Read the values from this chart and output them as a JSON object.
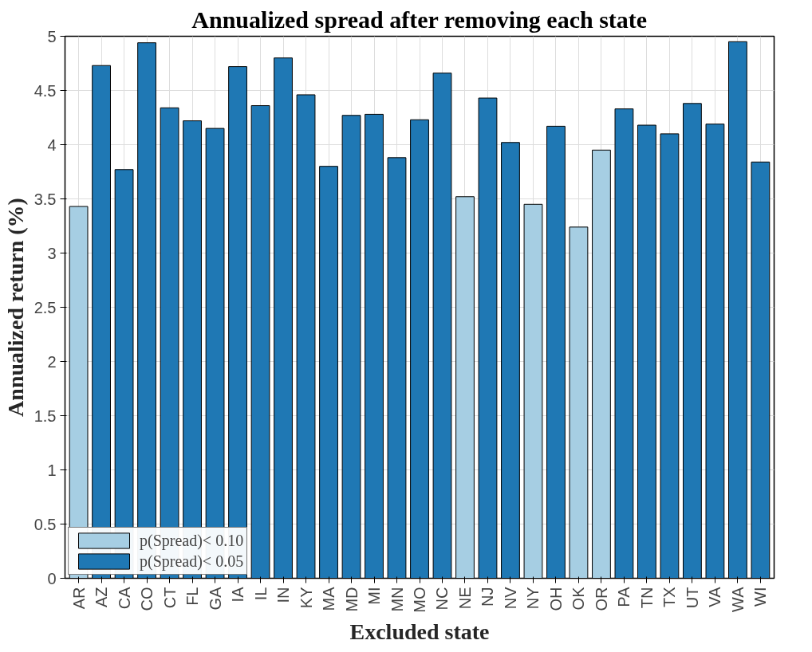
{
  "chart_data": {
    "type": "bar",
    "title": "Annualized spread after removing each state",
    "xlabel": "Excluded state",
    "ylabel": "Annualized return (%)",
    "categories": [
      "AR",
      "AZ",
      "CA",
      "CO",
      "CT",
      "FL",
      "GA",
      "IA",
      "IL",
      "IN",
      "KY",
      "MA",
      "MD",
      "MI",
      "MN",
      "MO",
      "NC",
      "NE",
      "NJ",
      "NV",
      "NY",
      "OH",
      "OK",
      "OR",
      "PA",
      "TN",
      "TX",
      "UT",
      "VA",
      "WA",
      "WI"
    ],
    "series": [
      {
        "name": "p(Spread)< 0.10",
        "color": "#a6cee3",
        "values": [
          3.43,
          null,
          null,
          null,
          null,
          null,
          null,
          null,
          null,
          null,
          null,
          null,
          null,
          null,
          null,
          null,
          null,
          3.52,
          null,
          null,
          3.45,
          null,
          3.24,
          3.95,
          null,
          null,
          null,
          null,
          null,
          null,
          null
        ]
      },
      {
        "name": "p(Spread)< 0.05",
        "color": "#1f78b4",
        "values": [
          null,
          4.73,
          3.77,
          4.94,
          4.34,
          4.22,
          4.15,
          4.72,
          4.36,
          4.8,
          4.46,
          3.8,
          4.27,
          4.28,
          3.88,
          4.23,
          4.66,
          null,
          4.43,
          4.02,
          null,
          4.17,
          null,
          null,
          4.33,
          4.18,
          4.1,
          4.38,
          4.19,
          4.95,
          3.84
        ]
      }
    ],
    "ylim": [
      0,
      5
    ],
    "yticks": [
      0,
      0.5,
      1,
      1.5,
      2,
      2.5,
      3,
      3.5,
      4,
      4.5,
      5
    ],
    "grid": true,
    "legend": "bottom left"
  }
}
